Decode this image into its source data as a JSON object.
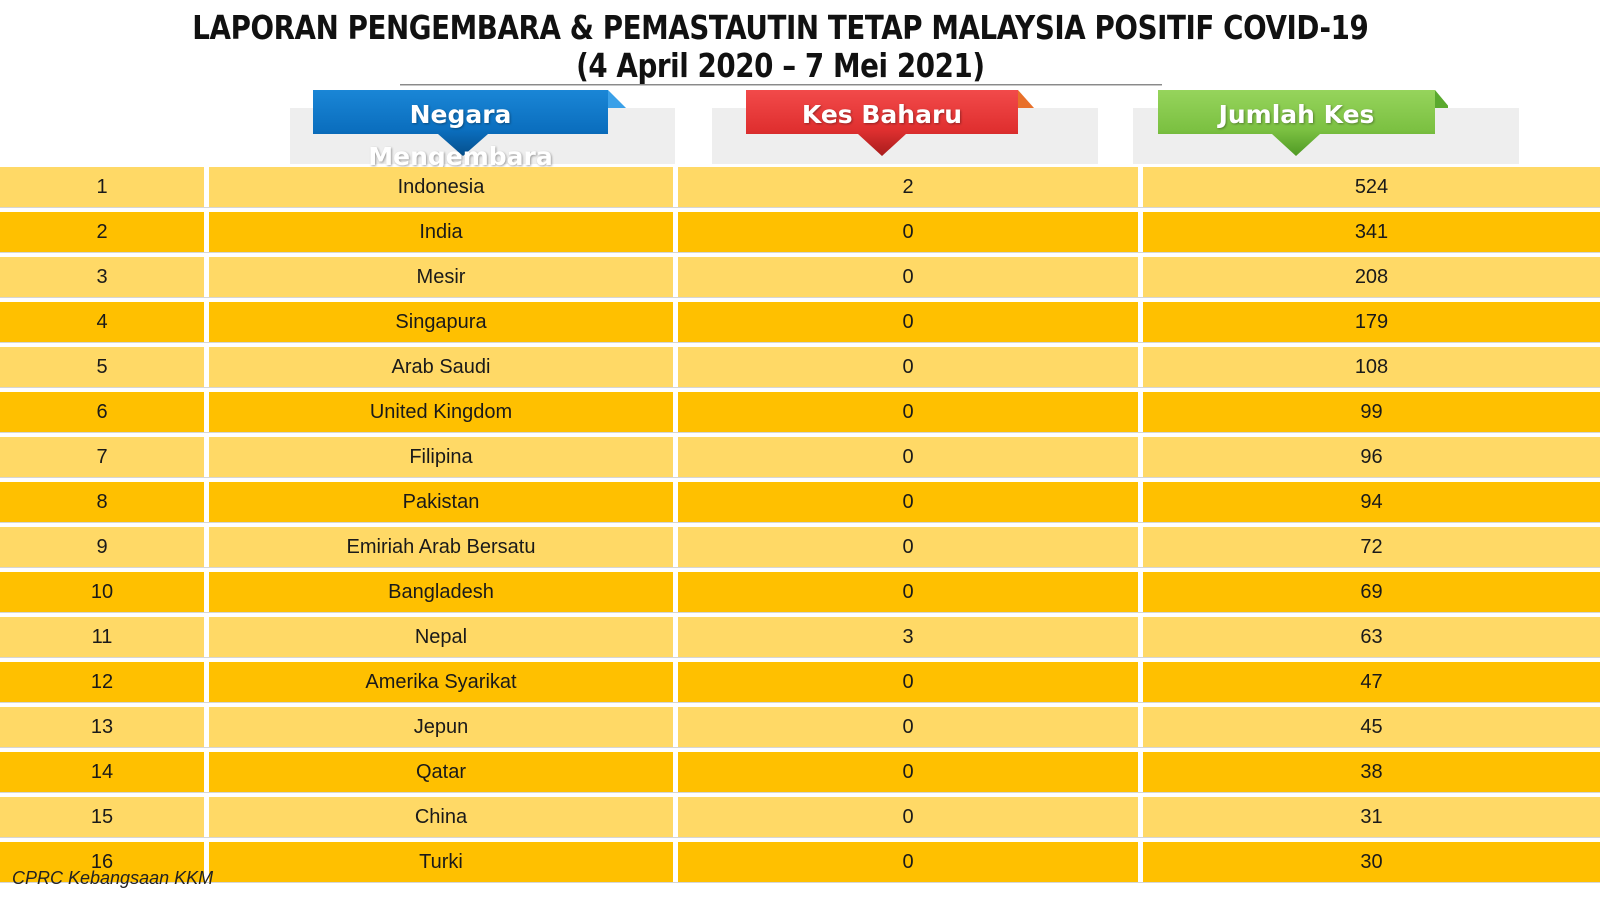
{
  "title": {
    "line1": "LAPORAN PENGEMBARA & PEMASTAUTIN TETAP MALAYSIA POSITIF COVID-19",
    "line2": "(4 April 2020 – 7 Mei 2021)"
  },
  "headers": {
    "country": "Negara Mengembara",
    "new_cases": "Kes Baharu",
    "total_cases": "Jumlah Kes"
  },
  "colors": {
    "header_country": "#0b6fbf",
    "header_new": "#e03030",
    "header_total": "#7cc142",
    "row_light": "#ffd966",
    "row_dark": "#ffc000"
  },
  "rows": [
    {
      "rank": "1",
      "country": "Indonesia",
      "new": "2",
      "total": "524"
    },
    {
      "rank": "2",
      "country": "India",
      "new": "0",
      "total": "341"
    },
    {
      "rank": "3",
      "country": "Mesir",
      "new": "0",
      "total": "208"
    },
    {
      "rank": "4",
      "country": "Singapura",
      "new": "0",
      "total": "179"
    },
    {
      "rank": "5",
      "country": "Arab Saudi",
      "new": "0",
      "total": "108"
    },
    {
      "rank": "6",
      "country": "United Kingdom",
      "new": "0",
      "total": "99"
    },
    {
      "rank": "7",
      "country": "Filipina",
      "new": "0",
      "total": "96"
    },
    {
      "rank": "8",
      "country": "Pakistan",
      "new": "0",
      "total": "94"
    },
    {
      "rank": "9",
      "country": "Emiriah Arab Bersatu",
      "new": "0",
      "total": "72"
    },
    {
      "rank": "10",
      "country": "Bangladesh",
      "new": "0",
      "total": "69"
    },
    {
      "rank": "11",
      "country": "Nepal",
      "new": "3",
      "total": "63"
    },
    {
      "rank": "12",
      "country": "Amerika Syarikat",
      "new": "0",
      "total": "47"
    },
    {
      "rank": "13",
      "country": "Jepun",
      "new": "0",
      "total": "45"
    },
    {
      "rank": "14",
      "country": "Qatar",
      "new": "0",
      "total": "38"
    },
    {
      "rank": "15",
      "country": "China",
      "new": "0",
      "total": "31"
    },
    {
      "rank": "16",
      "country": "Turki",
      "new": "0",
      "total": "30"
    }
  ],
  "footer": "CPRC Kebangsaan KKM"
}
